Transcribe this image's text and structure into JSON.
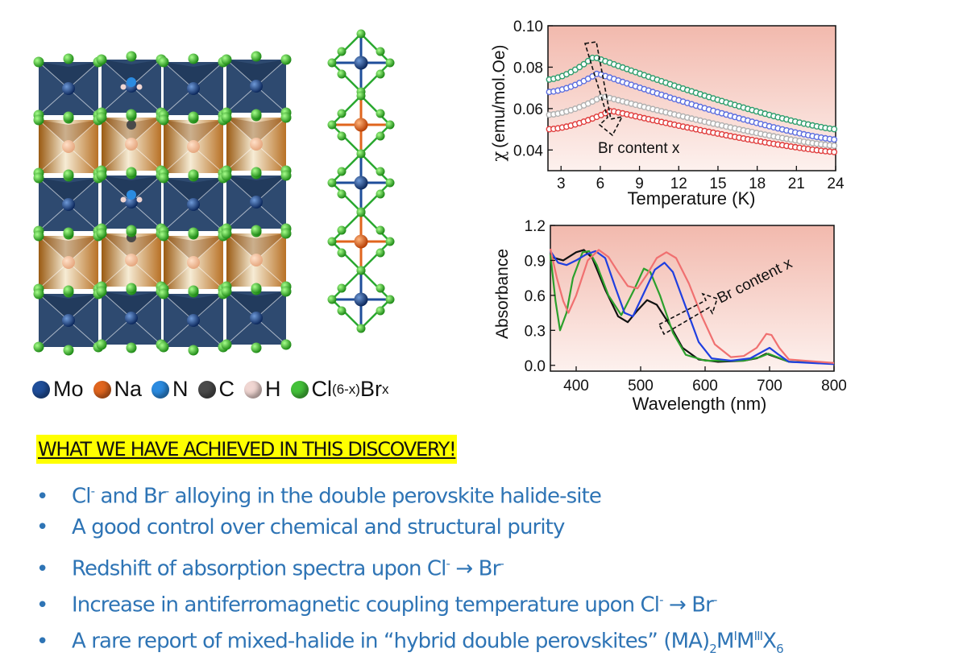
{
  "legend": {
    "items": [
      {
        "symbol": "Mo",
        "color": "#1f4e9a"
      },
      {
        "symbol": "Na",
        "color": "#e0651e"
      },
      {
        "symbol": "N",
        "color": "#2b8be0"
      },
      {
        "symbol": "C",
        "color": "#4a4a4a"
      },
      {
        "symbol": "H",
        "color": "#f0d6d2"
      }
    ],
    "halide_prefix": "Cl",
    "halide_sub1": "(6-x)",
    "halide_mid": "Br",
    "halide_sub2": "x",
    "halide_color": "#44c13a"
  },
  "chart_data": [
    {
      "type": "scatter",
      "ylabel_symbol": "χ",
      "ylabel": "(emu/mol.Oe)",
      "xlabel": "Temperature (K)",
      "xlim": [
        2,
        24
      ],
      "ylim": [
        0.03,
        0.1
      ],
      "xticks": [
        3,
        6,
        9,
        12,
        15,
        18,
        21,
        24
      ],
      "yticks": [
        0.04,
        0.06,
        0.08,
        0.1
      ],
      "ytick_labels": [
        "0.04",
        "0.06",
        "0.08",
        "0.10"
      ],
      "annotation": "Br content x",
      "series": [
        {
          "color": "#2e9e6e",
          "peakT": 5.5,
          "peak": 0.085,
          "start": 0.074,
          "end": 0.05
        },
        {
          "color": "#5b6ee0",
          "peakT": 5.8,
          "peak": 0.077,
          "start": 0.068,
          "end": 0.045
        },
        {
          "color": "#b0b0b0",
          "peakT": 6.2,
          "peak": 0.066,
          "start": 0.057,
          "end": 0.042
        },
        {
          "color": "#e03c3c",
          "peakT": 6.8,
          "peak": 0.059,
          "start": 0.05,
          "end": 0.039
        }
      ]
    },
    {
      "type": "line",
      "ylabel": "Absorbance",
      "xlabel": "Wavelength (nm)",
      "xlim": [
        360,
        800
      ],
      "ylim": [
        -0.05,
        1.2
      ],
      "xticks": [
        400,
        500,
        600,
        700,
        800
      ],
      "yticks": [
        0.0,
        0.3,
        0.6,
        0.9,
        1.2
      ],
      "ytick_labels": [
        "0.0",
        "0.3",
        "0.6",
        "0.9",
        "1.2"
      ],
      "annotation": "Br content x",
      "series": [
        {
          "color": "#111111",
          "points": [
            [
              360,
              0.93
            ],
            [
              380,
              0.9
            ],
            [
              400,
              0.97
            ],
            [
              412,
              0.99
            ],
            [
              425,
              0.92
            ],
            [
              445,
              0.65
            ],
            [
              465,
              0.42
            ],
            [
              480,
              0.37
            ],
            [
              495,
              0.47
            ],
            [
              510,
              0.56
            ],
            [
              525,
              0.52
            ],
            [
              545,
              0.35
            ],
            [
              565,
              0.15
            ],
            [
              590,
              0.05
            ],
            [
              620,
              0.03
            ],
            [
              660,
              0.04
            ],
            [
              680,
              0.06
            ],
            [
              695,
              0.1
            ],
            [
              710,
              0.07
            ],
            [
              730,
              0.03
            ],
            [
              800,
              0.02
            ]
          ]
        },
        {
          "color": "#2ca02c",
          "points": [
            [
              360,
              0.95
            ],
            [
              368,
              0.55
            ],
            [
              375,
              0.3
            ],
            [
              385,
              0.45
            ],
            [
              395,
              0.75
            ],
            [
              410,
              0.97
            ],
            [
              420,
              0.98
            ],
            [
              432,
              0.86
            ],
            [
              450,
              0.6
            ],
            [
              470,
              0.43
            ],
            [
              490,
              0.65
            ],
            [
              505,
              0.83
            ],
            [
              515,
              0.8
            ],
            [
              530,
              0.6
            ],
            [
              550,
              0.28
            ],
            [
              570,
              0.09
            ],
            [
              600,
              0.04
            ],
            [
              660,
              0.04
            ],
            [
              685,
              0.07
            ],
            [
              698,
              0.1
            ],
            [
              712,
              0.07
            ],
            [
              730,
              0.03
            ],
            [
              800,
              0.02
            ]
          ]
        },
        {
          "color": "#1f3fe0",
          "points": [
            [
              360,
              0.98
            ],
            [
              372,
              0.88
            ],
            [
              385,
              0.86
            ],
            [
              400,
              0.9
            ],
            [
              415,
              0.95
            ],
            [
              430,
              0.98
            ],
            [
              445,
              0.92
            ],
            [
              460,
              0.68
            ],
            [
              475,
              0.45
            ],
            [
              488,
              0.42
            ],
            [
              505,
              0.62
            ],
            [
              522,
              0.82
            ],
            [
              537,
              0.88
            ],
            [
              550,
              0.8
            ],
            [
              570,
              0.5
            ],
            [
              590,
              0.2
            ],
            [
              610,
              0.06
            ],
            [
              640,
              0.04
            ],
            [
              670,
              0.06
            ],
            [
              690,
              0.12
            ],
            [
              700,
              0.15
            ],
            [
              712,
              0.1
            ],
            [
              730,
              0.03
            ],
            [
              800,
              0.01
            ]
          ]
        },
        {
          "color": "#f07070",
          "points": [
            [
              360,
              1.0
            ],
            [
              370,
              0.75
            ],
            [
              380,
              0.55
            ],
            [
              388,
              0.45
            ],
            [
              400,
              0.6
            ],
            [
              418,
              0.9
            ],
            [
              435,
              0.99
            ],
            [
              450,
              0.93
            ],
            [
              465,
              0.8
            ],
            [
              480,
              0.68
            ],
            [
              495,
              0.66
            ],
            [
              510,
              0.78
            ],
            [
              525,
              0.92
            ],
            [
              540,
              0.97
            ],
            [
              555,
              0.92
            ],
            [
              575,
              0.7
            ],
            [
              595,
              0.42
            ],
            [
              615,
              0.18
            ],
            [
              640,
              0.07
            ],
            [
              660,
              0.08
            ],
            [
              680,
              0.15
            ],
            [
              695,
              0.27
            ],
            [
              703,
              0.26
            ],
            [
              715,
              0.15
            ],
            [
              730,
              0.05
            ],
            [
              800,
              0.02
            ]
          ]
        }
      ]
    }
  ],
  "headline": "WHAT WE HAVE ACHIEVED IN THIS DISCOVERY!",
  "bullets": {
    "b1": {
      "cl": "Cl",
      "sup1": "-",
      "and": " and Br",
      "sup2": "-",
      "rest": " alloying in the double perovskite halide-site"
    },
    "b2": {
      "text": "A good control over chemical and structural purity"
    },
    "b3": {
      "pre": "Redshift of absorption spectra upon Cl",
      "sup1": "-",
      "arrow": " → Br",
      "sup2": "-"
    },
    "b4": {
      "pre": "Increase in antiferromagnetic coupling temperature upon Cl",
      "sup1": "-",
      "arrow": " → Br",
      "sup2": "-"
    },
    "b5": {
      "pre": "A rare report of mixed-halide in “hybrid double perovskites” (MA)",
      "s1": "2",
      "m": "M",
      "sup1": "I",
      "m2": "M",
      "sup2": "III",
      "x": "X",
      "s2": "6"
    }
  },
  "bullet_marker": "•"
}
